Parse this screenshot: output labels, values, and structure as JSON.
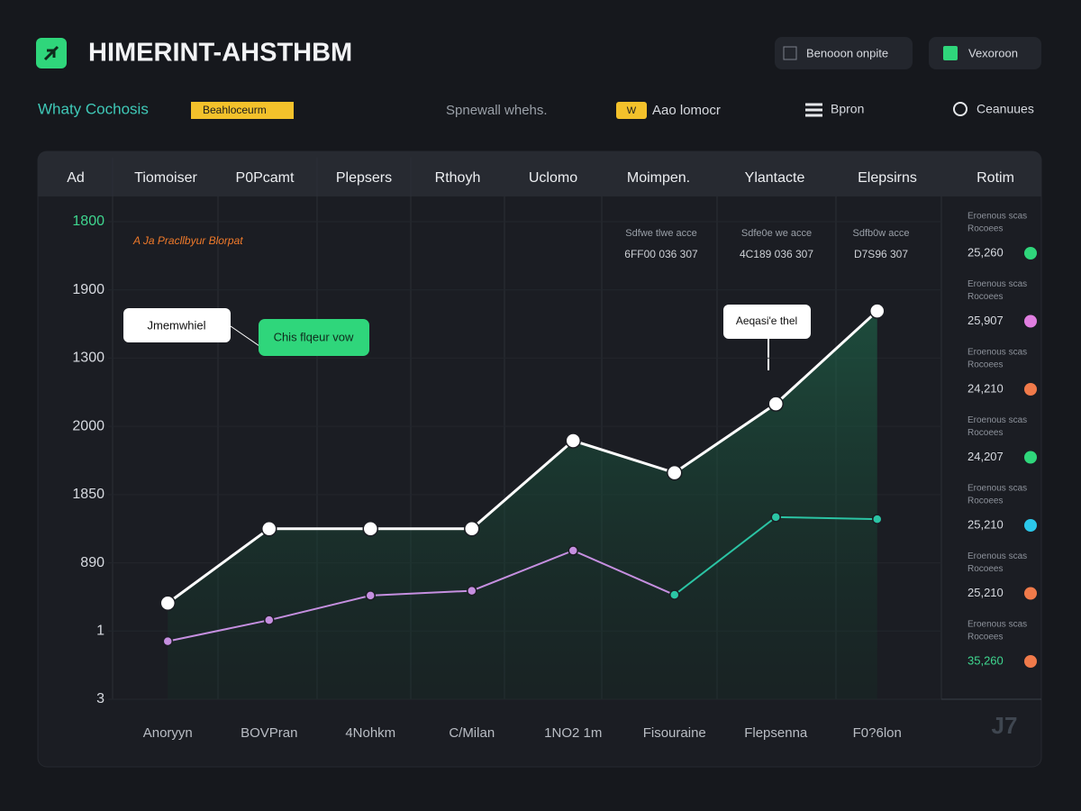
{
  "header": {
    "title": "HIMERINT-AHSTHBM",
    "buttons": [
      "Benooon onpite",
      "Vexoroon"
    ]
  },
  "toolbar": {
    "title": "Whaty Cochosis",
    "tag": "Beahloceurm",
    "search": "Spnewall whehs.",
    "badge_icon": "W",
    "badge": "Aao lomocr",
    "menu": "Bpron",
    "status": "Ceanuues"
  },
  "tabs": [
    "Ad",
    "Tiomoiser",
    "P0Pcamt",
    "Plepsers",
    "Rthoyh",
    "Uclomo",
    "Moimpen.",
    "Ylantacte",
    "Elepsirns",
    "Rotim"
  ],
  "chart_data": {
    "type": "line",
    "subtitle": "A Ja Pracllbyur Blorpat",
    "categories": [
      "Anoryyn",
      "BOVPran",
      "4Nohkm",
      "C/Milan",
      "1NO2 1m",
      "Fisouraine",
      "Flepsenna",
      "F0?6lon"
    ],
    "ylim": [
      0,
      7
    ],
    "yticks": [
      {
        "value": 0,
        "label": "3"
      },
      {
        "value": 1,
        "label": "1"
      },
      {
        "value": 2,
        "label": "890"
      },
      {
        "value": 3,
        "label": "1850"
      },
      {
        "value": 4,
        "label": "2000"
      },
      {
        "value": 5,
        "label": "1300"
      },
      {
        "value": 6,
        "label": "1900"
      },
      {
        "value": 7,
        "label": "1800"
      }
    ],
    "grid": true,
    "series": [
      {
        "color": "#ffffff",
        "values": [
          1.41,
          2.5,
          2.5,
          2.5,
          3.79,
          3.32,
          4.33,
          5.69
        ]
      },
      {
        "color": "#c58fe0",
        "values": [
          0.85,
          1.16,
          1.52,
          1.59,
          2.18,
          1.53,
          null,
          null
        ]
      },
      {
        "color": "#2bc4a4",
        "values": [
          null,
          null,
          null,
          null,
          null,
          1.53,
          2.67,
          2.64
        ]
      }
    ],
    "annotations": [
      "Jmemwhiel",
      "Chis flqeur vow",
      "Aeqasi'e thel"
    ],
    "stats": [
      {
        "label": "Sdfwe tlwe acce",
        "value": "6FF00 036 307"
      },
      {
        "label": "Sdfe0e we acce",
        "value": "4C189 036 307"
      },
      {
        "label": "Sdfb0w acce",
        "value": "D7S96 307"
      }
    ]
  },
  "side_list": [
    {
      "label": "Eroenous scas",
      "sublabel": "Rocoees",
      "value": "25,260",
      "color": "#2fd67b"
    },
    {
      "label": "Eroenous scas",
      "sublabel": "Rocoees",
      "value": "25,907",
      "color": "#e07ee0"
    },
    {
      "label": "Eroenous scas",
      "sublabel": "Rocoees",
      "value": "24,210",
      "color": "#f07a4a"
    },
    {
      "label": "Eroenous scas",
      "sublabel": "Rocoees",
      "value": "24,207",
      "color": "#2fd67b"
    },
    {
      "label": "Eroenous scas",
      "sublabel": "Rocoees",
      "value": "25,210",
      "color": "#2bc8ea"
    },
    {
      "label": "Eroenous scas",
      "sublabel": "Rocoees",
      "value": "25,210",
      "color": "#f07a4a"
    },
    {
      "label": "Eroenous scas",
      "sublabel": "Rocoees",
      "value": "35,260",
      "color": "#f07a4a"
    }
  ],
  "corner": "J7"
}
